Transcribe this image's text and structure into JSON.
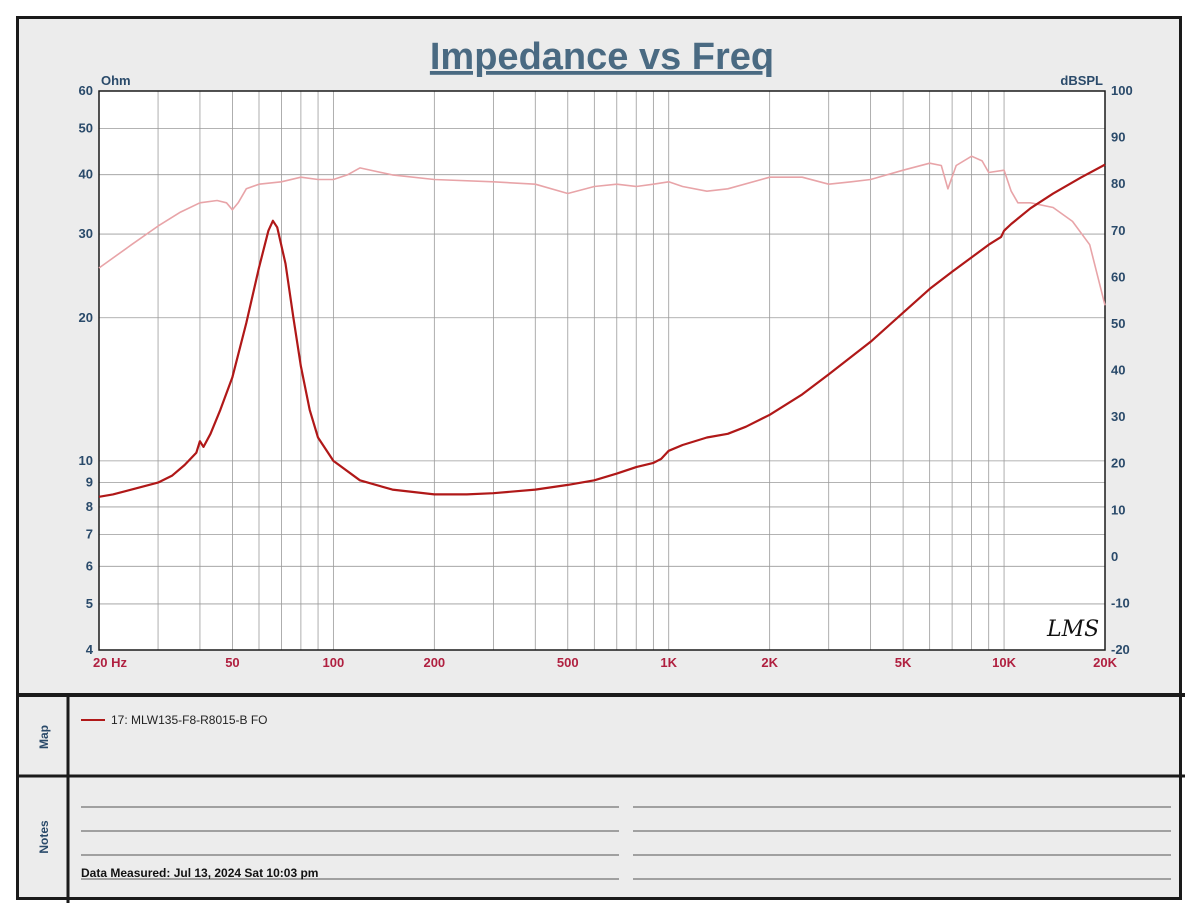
{
  "chart_data": {
    "type": "line",
    "title": "Impedance vs Freq",
    "left_axis_unit": "Ohm",
    "right_axis_unit": "dBSPL",
    "x_scale": "log",
    "left_scale": "log",
    "xlim": [
      20,
      20000
    ],
    "ylim_left": [
      4,
      60
    ],
    "ylim_right": [
      -20,
      100
    ],
    "grid": true,
    "x_ticks": [
      {
        "v": 20,
        "label": "20  Hz"
      },
      {
        "v": 50,
        "label": "50"
      },
      {
        "v": 100,
        "label": "100"
      },
      {
        "v": 200,
        "label": "200"
      },
      {
        "v": 500,
        "label": "500"
      },
      {
        "v": 1000,
        "label": "1K"
      },
      {
        "v": 2000,
        "label": "2K"
      },
      {
        "v": 5000,
        "label": "5K"
      },
      {
        "v": 10000,
        "label": "10K"
      },
      {
        "v": 20000,
        "label": "20K"
      }
    ],
    "left_ticks": [
      {
        "v": 60,
        "label": "60"
      },
      {
        "v": 50,
        "label": "50"
      },
      {
        "v": 40,
        "label": "40"
      },
      {
        "v": 30,
        "label": "30"
      },
      {
        "v": 20,
        "label": "20"
      },
      {
        "v": 10,
        "label": "10"
      },
      {
        "v": 9,
        "label": "9"
      },
      {
        "v": 8,
        "label": "8"
      },
      {
        "v": 7,
        "label": "7"
      },
      {
        "v": 6,
        "label": "6"
      },
      {
        "v": 5,
        "label": "5"
      },
      {
        "v": 4,
        "label": "4"
      }
    ],
    "right_ticks": [
      {
        "v": 100,
        "label": "100"
      },
      {
        "v": 90,
        "label": "90"
      },
      {
        "v": 80,
        "label": "80"
      },
      {
        "v": 70,
        "label": "70"
      },
      {
        "v": 60,
        "label": "60"
      },
      {
        "v": 50,
        "label": "50"
      },
      {
        "v": 40,
        "label": "40"
      },
      {
        "v": 30,
        "label": "30"
      },
      {
        "v": 20,
        "label": "20"
      },
      {
        "v": 10,
        "label": "10"
      },
      {
        "v": 0,
        "label": "0"
      },
      {
        "v": -10,
        "label": "-10"
      },
      {
        "v": -20,
        "label": "-20"
      }
    ],
    "series": [
      {
        "name": "17: MLW135-F8-R8015-B  FO",
        "axis": "left",
        "color": "#b01818",
        "points": [
          [
            20,
            8.4
          ],
          [
            22,
            8.5
          ],
          [
            25,
            8.7
          ],
          [
            30,
            9.0
          ],
          [
            33,
            9.3
          ],
          [
            36,
            9.8
          ],
          [
            39,
            10.4
          ],
          [
            40,
            11.0
          ],
          [
            41,
            10.7
          ],
          [
            43,
            11.4
          ],
          [
            46,
            12.8
          ],
          [
            50,
            15.0
          ],
          [
            55,
            19.5
          ],
          [
            60,
            25.5
          ],
          [
            64,
            30.5
          ],
          [
            66,
            32.0
          ],
          [
            68,
            31.0
          ],
          [
            72,
            26.0
          ],
          [
            76,
            20.0
          ],
          [
            80,
            15.8
          ],
          [
            85,
            12.8
          ],
          [
            90,
            11.2
          ],
          [
            100,
            10.0
          ],
          [
            120,
            9.1
          ],
          [
            150,
            8.7
          ],
          [
            200,
            8.5
          ],
          [
            250,
            8.5
          ],
          [
            300,
            8.55
          ],
          [
            400,
            8.7
          ],
          [
            500,
            8.9
          ],
          [
            600,
            9.1
          ],
          [
            700,
            9.4
          ],
          [
            800,
            9.7
          ],
          [
            900,
            9.9
          ],
          [
            950,
            10.1
          ],
          [
            1000,
            10.5
          ],
          [
            1100,
            10.8
          ],
          [
            1300,
            11.2
          ],
          [
            1500,
            11.4
          ],
          [
            1700,
            11.8
          ],
          [
            2000,
            12.5
          ],
          [
            2500,
            13.8
          ],
          [
            3000,
            15.2
          ],
          [
            4000,
            17.8
          ],
          [
            5000,
            20.5
          ],
          [
            6000,
            23.0
          ],
          [
            7000,
            25.0
          ],
          [
            8000,
            26.8
          ],
          [
            9000,
            28.5
          ],
          [
            9800,
            29.6
          ],
          [
            10000,
            30.5
          ],
          [
            10500,
            31.5
          ],
          [
            12000,
            34.0
          ],
          [
            14000,
            36.5
          ],
          [
            17000,
            39.5
          ],
          [
            20000,
            42.0
          ]
        ]
      },
      {
        "name": "SPL",
        "axis": "right",
        "color": "#e8a4a8",
        "points": [
          [
            20,
            62
          ],
          [
            25,
            67
          ],
          [
            30,
            71
          ],
          [
            35,
            74
          ],
          [
            40,
            76
          ],
          [
            45,
            76.5
          ],
          [
            48,
            76
          ],
          [
            50,
            74.5
          ],
          [
            52,
            76
          ],
          [
            55,
            79
          ],
          [
            60,
            80
          ],
          [
            70,
            80.5
          ],
          [
            80,
            81.5
          ],
          [
            90,
            81
          ],
          [
            100,
            81
          ],
          [
            110,
            82
          ],
          [
            120,
            83.5
          ],
          [
            150,
            82
          ],
          [
            200,
            81
          ],
          [
            300,
            80.5
          ],
          [
            400,
            80
          ],
          [
            500,
            78
          ],
          [
            600,
            79.5
          ],
          [
            700,
            80
          ],
          [
            800,
            79.5
          ],
          [
            900,
            80
          ],
          [
            1000,
            80.5
          ],
          [
            1100,
            79.5
          ],
          [
            1300,
            78.5
          ],
          [
            1500,
            79
          ],
          [
            2000,
            81.5
          ],
          [
            2500,
            81.5
          ],
          [
            3000,
            80
          ],
          [
            3500,
            80.5
          ],
          [
            4000,
            81
          ],
          [
            5000,
            83
          ],
          [
            6000,
            84.5
          ],
          [
            6500,
            84
          ],
          [
            6800,
            79
          ],
          [
            7200,
            84
          ],
          [
            8000,
            86
          ],
          [
            8600,
            85
          ],
          [
            9000,
            82.5
          ],
          [
            10000,
            83
          ],
          [
            10500,
            78.5
          ],
          [
            11000,
            76
          ],
          [
            12000,
            76
          ],
          [
            14000,
            75
          ],
          [
            16000,
            72
          ],
          [
            18000,
            67
          ],
          [
            20000,
            54
          ]
        ]
      }
    ],
    "annotations": [
      "LMS"
    ]
  },
  "map_panel": {
    "label": "Map",
    "legend_items": [
      {
        "label": "17: MLW135-F8-R8015-B  FO",
        "color": "#b01818"
      }
    ]
  },
  "notes_panel": {
    "label": "Notes",
    "measured_text": "Data Measured: Jul 13, 2024  Sat 10:03 pm"
  }
}
